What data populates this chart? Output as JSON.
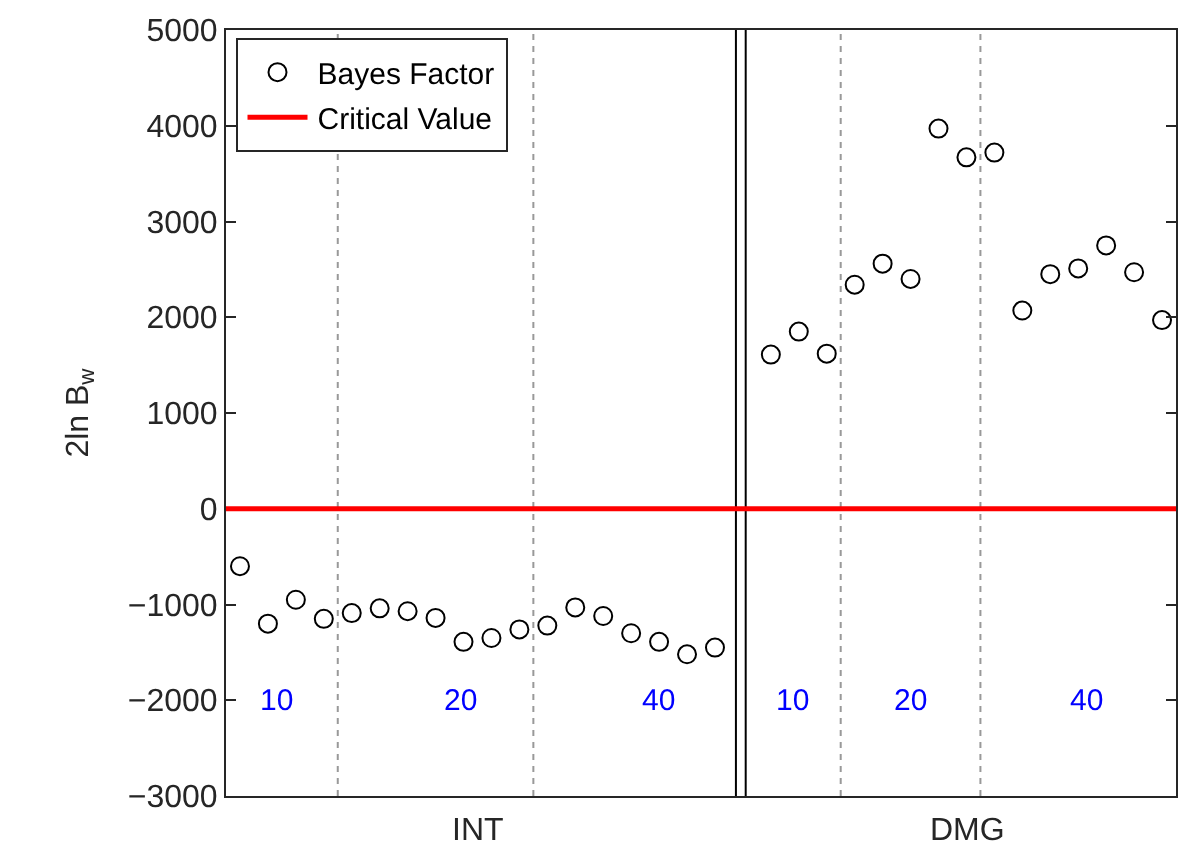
{
  "chart_data": {
    "type": "scatter",
    "ylabel": "2ln B$_{w}$",
    "categories": [
      null,
      null,
      null,
      null,
      null,
      null,
      null,
      null,
      null,
      null,
      null,
      null,
      null,
      null,
      null,
      null,
      null,
      null,
      null,
      null,
      null,
      null,
      null,
      null,
      null,
      null,
      null,
      null,
      null,
      null,
      null,
      null,
      null,
      null
    ],
    "ylim": [
      -3000,
      5000
    ],
    "yticks": [
      -3000,
      -2000,
      -1000,
      0,
      1000,
      2000,
      3000,
      4000,
      5000
    ],
    "grid": false,
    "legend": "top left",
    "marker": "circle",
    "series": [
      {
        "name": "Bayes Factor",
        "color": "#000000",
        "values": [
          -600,
          -1200,
          -950,
          -1150,
          -1090,
          -1040,
          -1070,
          -1140,
          -1390,
          -1350,
          -1260,
          -1220,
          -1030,
          -1120,
          -1300,
          -1390,
          -1520,
          -1450,
          null,
          1610,
          1850,
          1620,
          2340,
          2560,
          2400,
          3970,
          3670,
          3720,
          2070,
          2450,
          2510,
          2750,
          2470,
          1970
        ]
      }
    ],
    "ref_lines": [
      {
        "axis": "y",
        "value": 0,
        "label": "Critical Value",
        "color": "#ff0000",
        "line_style": "solid"
      }
    ],
    "annotations": [
      "INT",
      "DMG",
      "10",
      "20",
      "40",
      "10",
      "20",
      "40"
    ]
  }
}
